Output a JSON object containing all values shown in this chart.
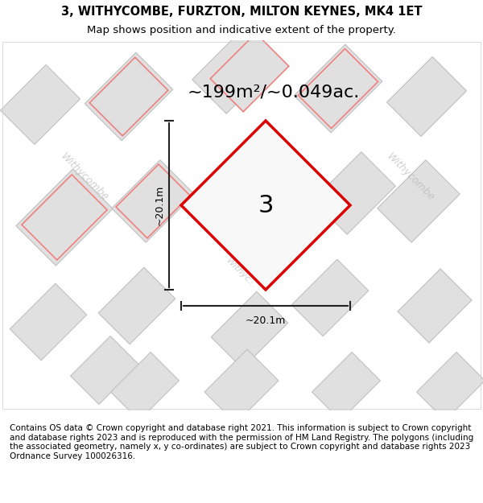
{
  "title_line1": "3, WITHYCOMBE, FURZTON, MILTON KEYNES, MK4 1ET",
  "title_line2": "Map shows position and indicative extent of the property.",
  "area_label": "~199m²/~0.049ac.",
  "width_label": "~20.1m",
  "height_label": "~20.1m",
  "plot_number": "3",
  "copyright_text": "Contains OS data © Crown copyright and database right 2021. This information is subject to Crown copyright and database rights 2023 and is reproduced with the permission of HM Land Registry. The polygons (including the associated geometry, namely x, y co-ordinates) are subject to Crown copyright and database rights 2023 Ordnance Survey 100026316.",
  "bg_color": "#f5f5f5",
  "map_bg": "#f0f0f0",
  "road_color": "#ffffff",
  "building_fill": "#e0e0e0",
  "building_edge": "#c0c0c0",
  "pink_outline": "#f08080",
  "red_diamond_color": "#dd0000",
  "diamond_fill": "#f8f8f8",
  "street_label_color": "#b0b0b0",
  "dim_line_color": "#222222",
  "title_fontsize": 10.5,
  "subtitle_fontsize": 9.5,
  "area_fontsize": 16,
  "label_fontsize": 9,
  "plot_num_fontsize": 22,
  "copyright_fontsize": 7.5
}
